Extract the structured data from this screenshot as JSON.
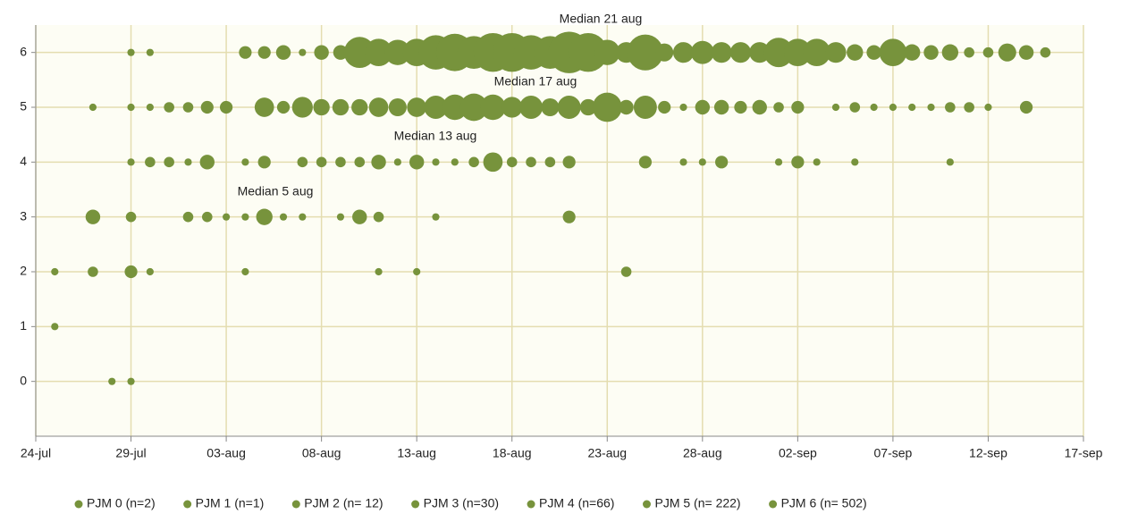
{
  "chart_data": {
    "type": "bubble",
    "annotations": [
      "Median 21 aug",
      "Median 17 aug",
      "Median 13 aug",
      "Median 5 aug"
    ],
    "xlim": [
      0,
      55
    ],
    "xticks": [
      {
        "value": 0,
        "label": "24-jul"
      },
      {
        "value": 5,
        "label": "29-jul"
      },
      {
        "value": 10,
        "label": "03-aug"
      },
      {
        "value": 15,
        "label": "08-aug"
      },
      {
        "value": 20,
        "label": "13-aug"
      },
      {
        "value": 25,
        "label": "18-aug"
      },
      {
        "value": 30,
        "label": "23-aug"
      },
      {
        "value": 35,
        "label": "28-aug"
      },
      {
        "value": 40,
        "label": "02-sep"
      },
      {
        "value": 45,
        "label": "07-sep"
      },
      {
        "value": 50,
        "label": "12-sep"
      },
      {
        "value": 55,
        "label": "17-sep"
      }
    ],
    "ylim": [
      -1,
      6.5
    ],
    "yticks": [
      0,
      1,
      2,
      3,
      4,
      5,
      6
    ],
    "grid": true,
    "series": [
      {
        "name": "PJM 0 (n=2)",
        "color": "#77933c",
        "x": [
          4,
          5
        ],
        "values": [
          0,
          0
        ],
        "sizes": [
          1,
          1
        ]
      },
      {
        "name": "PJM 1 (n=1)",
        "color": "#77933c",
        "x": [
          1
        ],
        "values": [
          1
        ],
        "sizes": [
          1
        ]
      },
      {
        "name": "PJM 2 (n= 12)",
        "color": "#77933c",
        "x": [
          1,
          3,
          5,
          6,
          11,
          18,
          20,
          31
        ],
        "values": [
          2,
          2,
          2,
          2,
          2,
          2,
          2,
          2
        ],
        "sizes": [
          1,
          2,
          3,
          1,
          1,
          1,
          1,
          2
        ]
      },
      {
        "name": "PJM 3 (n=30)",
        "color": "#77933c",
        "x": [
          3,
          5,
          8,
          9,
          10,
          11,
          12,
          13,
          14,
          16,
          17,
          18,
          21,
          28
        ],
        "values": [
          3,
          3,
          3,
          3,
          3,
          3,
          3,
          3,
          3,
          3,
          3,
          3,
          3,
          3
        ],
        "sizes": [
          4,
          2,
          2,
          2,
          1,
          1,
          5,
          1,
          1,
          1,
          4,
          2,
          1,
          3
        ]
      },
      {
        "name": "PJM 4 (n=66)",
        "color": "#77933c",
        "x": [
          5,
          6,
          7,
          8,
          9,
          11,
          12,
          14,
          15,
          16,
          17,
          18,
          19,
          20,
          21,
          22,
          23,
          24,
          25,
          26,
          27,
          28,
          32,
          34,
          35,
          36,
          39,
          40,
          41,
          43,
          48
        ],
        "values": [
          4,
          4,
          4,
          4,
          4,
          4,
          4,
          4,
          4,
          4,
          4,
          4,
          4,
          4,
          4,
          4,
          4,
          4,
          4,
          4,
          4,
          4,
          4,
          4,
          4,
          4,
          4,
          4,
          4,
          4,
          4
        ],
        "sizes": [
          1,
          2,
          2,
          1,
          4,
          1,
          3,
          2,
          2,
          2,
          2,
          4,
          1,
          4,
          1,
          1,
          2,
          7,
          2,
          2,
          2,
          3,
          3,
          1,
          1,
          3,
          1,
          3,
          1,
          1,
          1
        ]
      },
      {
        "name": "PJM 5 (n= 222)",
        "color": "#77933c",
        "x": [
          3,
          5,
          6,
          7,
          8,
          9,
          10,
          12,
          13,
          14,
          15,
          16,
          17,
          18,
          19,
          20,
          21,
          22,
          23,
          24,
          25,
          26,
          27,
          28,
          29,
          30,
          31,
          32,
          33,
          34,
          35,
          36,
          37,
          38,
          39,
          40,
          42,
          43,
          44,
          45,
          46,
          47,
          48,
          49,
          50,
          52
        ],
        "values": [
          5,
          5,
          5,
          5,
          5,
          5,
          5,
          5,
          5,
          5,
          5,
          5,
          5,
          5,
          5,
          5,
          5,
          5,
          5,
          5,
          5,
          5,
          5,
          5,
          5,
          5,
          5,
          5,
          5,
          5,
          5,
          5,
          5,
          5,
          5,
          5,
          5,
          5,
          5,
          5,
          5,
          5,
          5,
          5,
          5,
          5
        ],
        "sizes": [
          1,
          1,
          1,
          2,
          2,
          3,
          3,
          7,
          3,
          8,
          5,
          5,
          5,
          7,
          6,
          7,
          10,
          12,
          14,
          12,
          8,
          10,
          6,
          10,
          5,
          16,
          4,
          10,
          3,
          1,
          4,
          4,
          3,
          4,
          2,
          3,
          1,
          2,
          1,
          1,
          1,
          1,
          2,
          2,
          1,
          3
        ]
      },
      {
        "name": "PJM 6 (n= 502)",
        "color": "#77933c",
        "x": [
          5,
          6,
          11,
          12,
          13,
          14,
          15,
          16,
          17,
          18,
          19,
          20,
          21,
          22,
          23,
          24,
          25,
          26,
          27,
          28,
          29,
          30,
          31,
          32,
          33,
          34,
          35,
          36,
          37,
          38,
          39,
          40,
          41,
          42,
          43,
          44,
          45,
          46,
          47,
          48,
          49,
          50,
          51,
          52,
          53
        ],
        "values": [
          6,
          6,
          6,
          6,
          6,
          6,
          6,
          6,
          6,
          6,
          6,
          6,
          6,
          6,
          6,
          6,
          6,
          6,
          6,
          6,
          6,
          6,
          6,
          6,
          6,
          6,
          6,
          6,
          6,
          6,
          6,
          6,
          6,
          6,
          6,
          6,
          6,
          6,
          6,
          6,
          6,
          6,
          6,
          6,
          6
        ],
        "sizes": [
          1,
          1,
          3,
          3,
          4,
          1,
          4,
          4,
          18,
          14,
          12,
          14,
          22,
          26,
          20,
          28,
          28,
          22,
          20,
          32,
          28,
          12,
          8,
          24,
          6,
          8,
          10,
          8,
          8,
          8,
          16,
          14,
          14,
          8,
          5,
          4,
          14,
          5,
          4,
          5,
          2,
          2,
          6,
          4,
          2
        ]
      }
    ]
  }
}
